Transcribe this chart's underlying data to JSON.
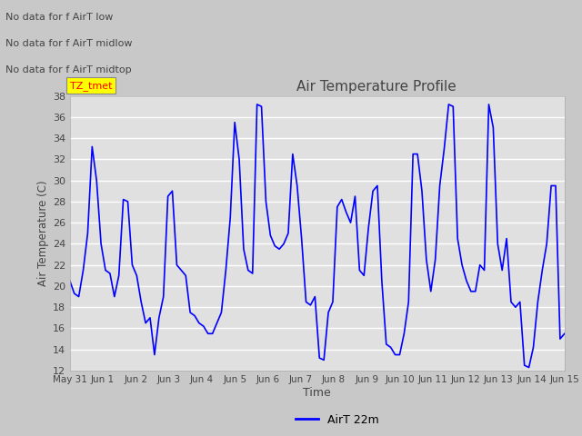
{
  "title": "Air Temperature Profile",
  "xlabel": "Time",
  "ylabel": "Air Temperature (C)",
  "ylim": [
    12,
    38
  ],
  "yticks": [
    12,
    14,
    16,
    18,
    20,
    22,
    24,
    26,
    28,
    30,
    32,
    34,
    36,
    38
  ],
  "line_color": "blue",
  "line_width": 1.2,
  "fig_bg_color": "#c8c8c8",
  "plot_bg_color": "#e0e0e0",
  "grid_color": "white",
  "annotations": [
    "No data for f AirT low",
    "No data for f AirT midlow",
    "No data for f AirT midtop"
  ],
  "legend_label": "AirT 22m",
  "x_tick_labels": [
    "May 31",
    "Jun 1",
    "Jun 2",
    "Jun 3",
    "Jun 4",
    "Jun 5",
    "Jun 6",
    "Jun 7",
    "Jun 8",
    "Jun 9",
    "Jun 10",
    "Jun 11",
    "Jun 12",
    "Jun 13",
    "Jun 14",
    "Jun 15"
  ],
  "n_days": 15,
  "temp_data": [
    20.5,
    19.3,
    19.0,
    21.5,
    25.0,
    33.2,
    30.0,
    24.0,
    21.5,
    21.2,
    19.0,
    21.0,
    28.2,
    28.0,
    22.0,
    21.0,
    18.5,
    16.5,
    17.0,
    13.5,
    17.0,
    19.0,
    28.5,
    29.0,
    22.0,
    21.5,
    21.0,
    17.5,
    17.2,
    16.5,
    16.2,
    15.5,
    15.5,
    16.5,
    17.5,
    21.5,
    26.5,
    35.5,
    32.0,
    23.5,
    21.5,
    21.2,
    37.2,
    37.0,
    28.0,
    24.8,
    23.8,
    23.5,
    24.0,
    25.0,
    32.5,
    29.5,
    24.5,
    18.5,
    18.2,
    19.0,
    13.2,
    13.0,
    17.5,
    18.5,
    27.5,
    28.2,
    27.0,
    26.0,
    28.5,
    21.5,
    21.0,
    25.5,
    29.0,
    29.5,
    20.5,
    14.5,
    14.2,
    13.5,
    13.5,
    15.5,
    18.5,
    32.5,
    32.5,
    29.0,
    22.5,
    19.5,
    22.5,
    29.5,
    33.0,
    37.2,
    37.0,
    24.5,
    22.0,
    20.5,
    19.5,
    19.5,
    22.0,
    21.5,
    37.2,
    35.0,
    24.0,
    21.5,
    24.5,
    18.5,
    18.0,
    18.5,
    12.5,
    12.3,
    14.2,
    18.5,
    21.5,
    24.0,
    29.5,
    29.5,
    15.0,
    15.5
  ]
}
